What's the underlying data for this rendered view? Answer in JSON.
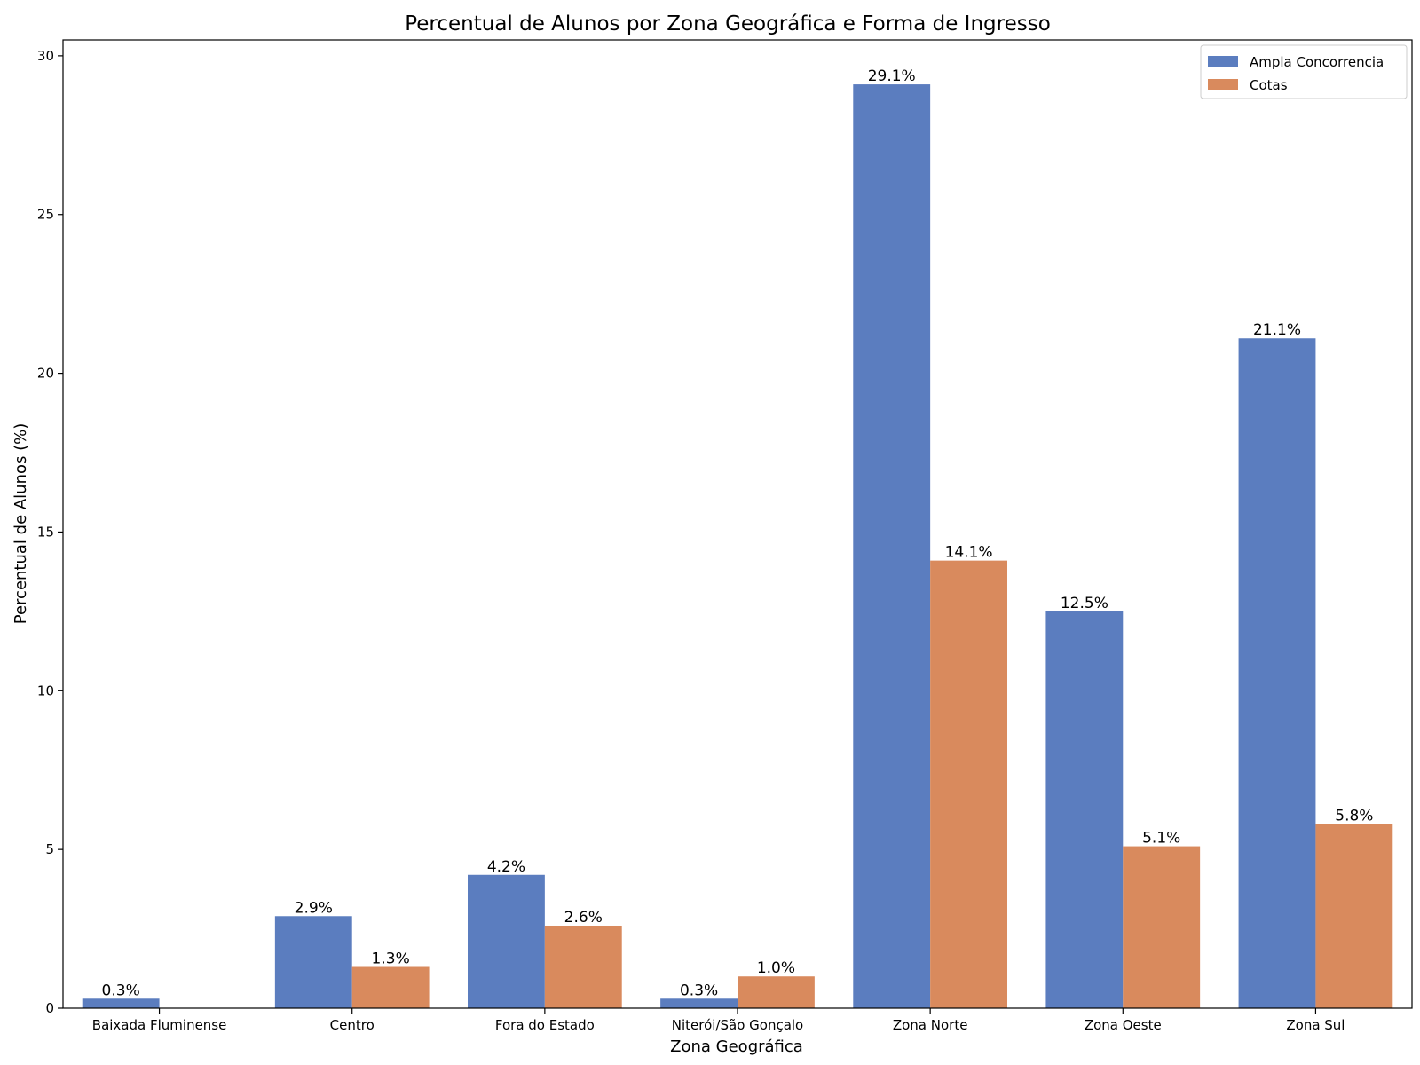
{
  "chart_data": {
    "type": "bar",
    "title": "Percentual de Alunos por Zona Geográfica e Forma de Ingresso",
    "xlabel": "Zona Geográfica",
    "ylabel": "Percentual de Alunos (%)",
    "ylim": [
      0,
      30.5
    ],
    "yticks": [
      "0",
      "5",
      "10",
      "15",
      "20",
      "25",
      "30"
    ],
    "grid": false,
    "legend_position": "top-right",
    "categories": [
      "Baixada Fluminense",
      "Centro",
      "Fora do Estado",
      "Niterói/São Gonçalo",
      "Zona Norte",
      "Zona Oeste",
      "Zona Sul"
    ],
    "series": [
      {
        "name": "Ampla Concorrencia",
        "color": "#5b7dbf",
        "values": [
          0.3,
          2.9,
          4.2,
          0.3,
          29.1,
          12.5,
          21.1
        ],
        "labels": [
          "0.3%",
          "2.9%",
          "4.2%",
          "0.3%",
          "29.1%",
          "12.5%",
          "21.1%"
        ]
      },
      {
        "name": "Cotas",
        "color": "#d98a5d",
        "values": [
          null,
          1.3,
          2.6,
          1.0,
          14.1,
          5.1,
          5.8
        ],
        "labels": [
          null,
          "1.3%",
          "2.6%",
          "1.0%",
          "14.1%",
          "5.1%",
          "5.8%"
        ]
      }
    ]
  }
}
